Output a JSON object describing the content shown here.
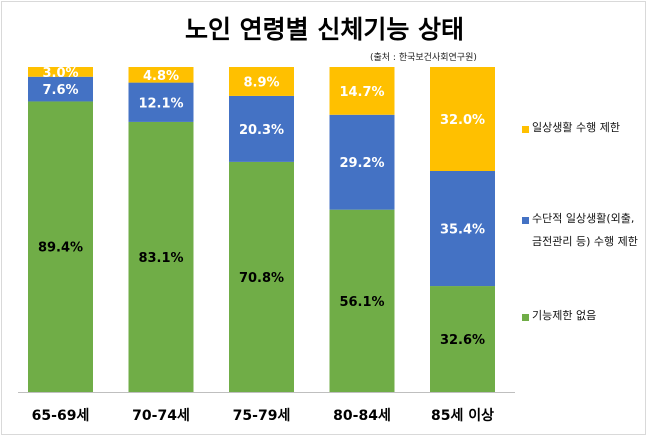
{
  "title": "노인 연령별 신체기능 상태",
  "source": "(출처 : 한국보건사회연구원)",
  "colors": {
    "limited": "#FFC000",
    "instrumental": "#4472C4",
    "none": "#70AD47"
  },
  "chart_data": {
    "type": "bar",
    "stacked": true,
    "normalized": true,
    "categories": [
      "65-69세",
      "70-74세",
      "75-79세",
      "80-84세",
      "85세 이상"
    ],
    "series": [
      {
        "name": "기능제한 없음",
        "color": "#70AD47",
        "values": [
          89.4,
          83.1,
          70.8,
          56.1,
          32.6
        ],
        "labels": [
          "89.4%",
          "83.1%",
          "70.8%",
          "56.1%",
          "32.6%"
        ]
      },
      {
        "name": "수단적 일상생활(외출, 금전관리 등) 수행 제한",
        "color": "#4472C4",
        "values": [
          7.6,
          12.1,
          20.3,
          29.2,
          35.4
        ],
        "labels": [
          "7.6%",
          "12.1%",
          "20.3%",
          "29.2%",
          "35.4%"
        ]
      },
      {
        "name": "일상생활 수행 제한",
        "color": "#FFC000",
        "values": [
          3.0,
          4.8,
          8.9,
          14.7,
          32.0
        ],
        "labels": [
          "3.0%",
          "4.8%",
          "8.9%",
          "14.7%",
          "32.0%"
        ]
      }
    ],
    "ylim": [
      0,
      100
    ],
    "grid": false,
    "legend_position": "right"
  },
  "legend": [
    {
      "label": "일상생활 수행 제한",
      "color": "#FFC000"
    },
    {
      "label": "수단적 일상생활(외출, 금전관리 등) 수행 제한",
      "color": "#4472C4"
    },
    {
      "label": "기능제한 없음",
      "color": "#70AD47"
    }
  ]
}
